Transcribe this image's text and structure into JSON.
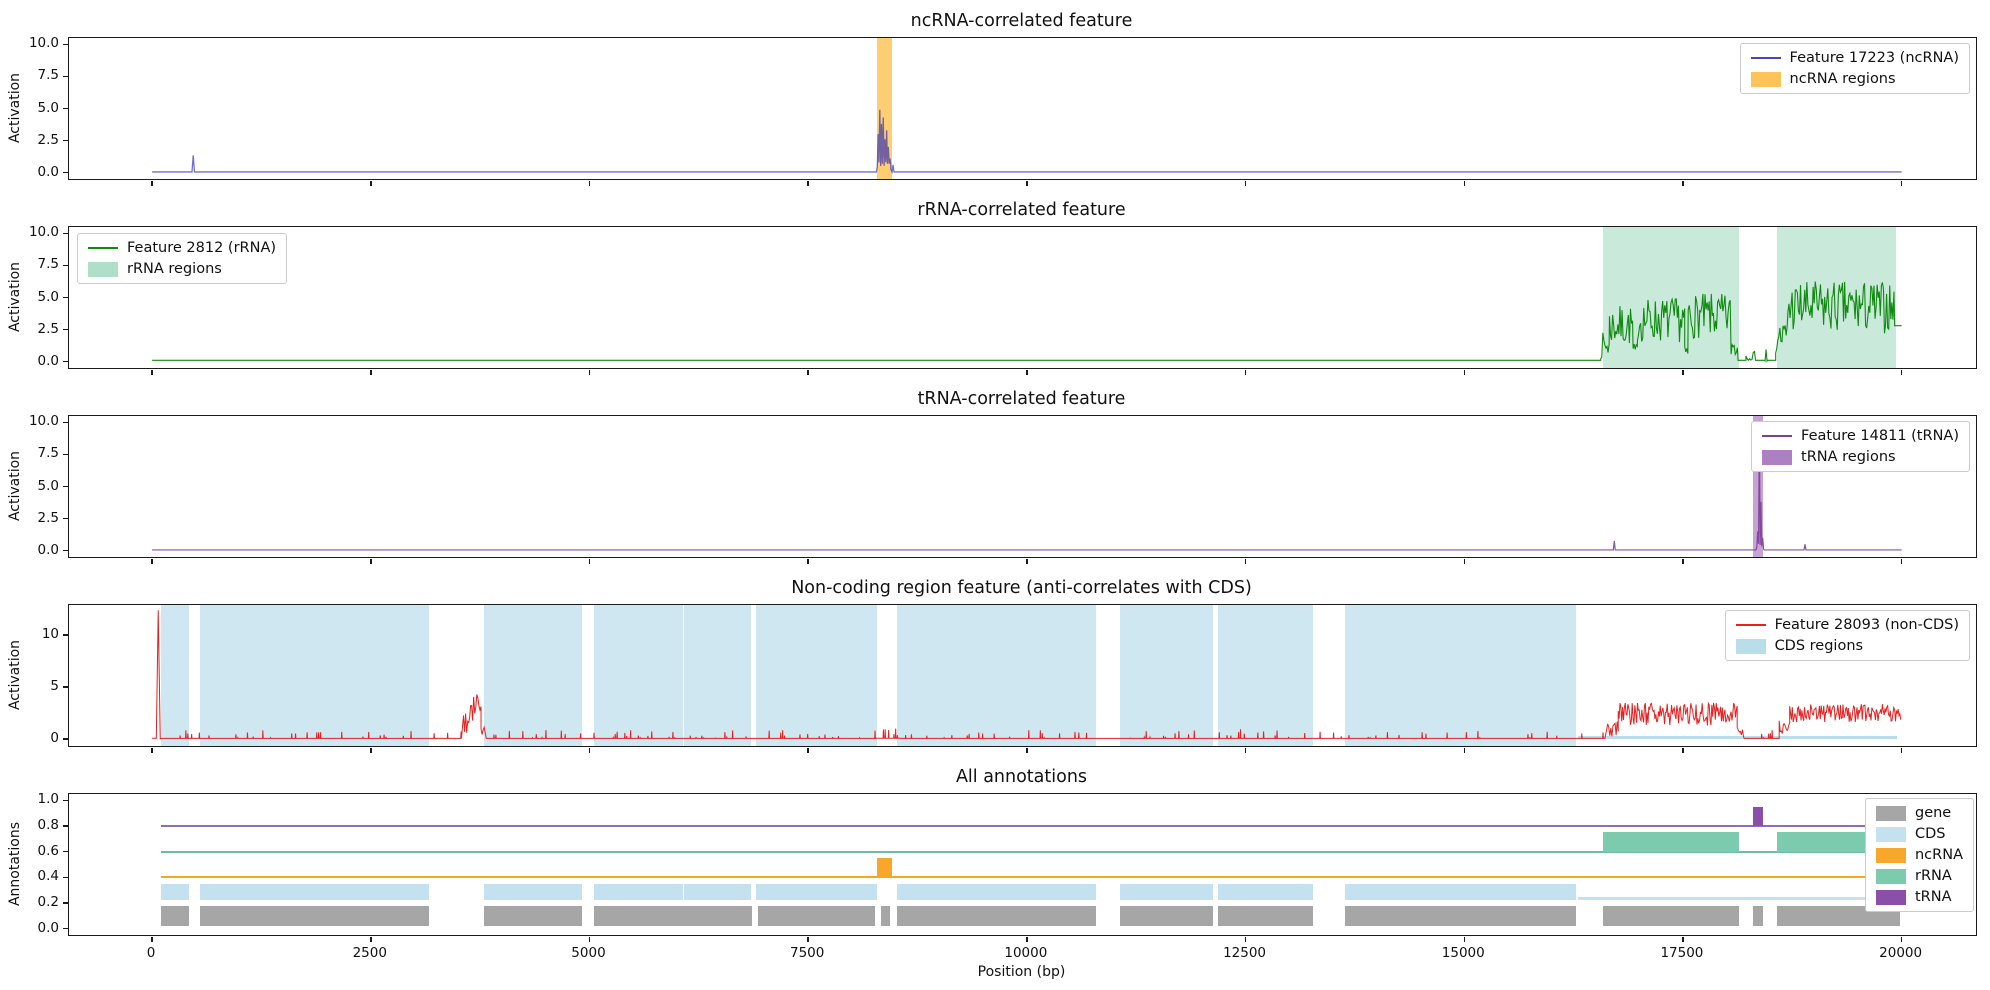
{
  "figure": {
    "xlabel": "Position (bp)",
    "xlim": [
      -950,
      20850
    ],
    "xticks": [
      0,
      2500,
      5000,
      7500,
      10000,
      12500,
      15000,
      17500,
      20000
    ],
    "xtick_labels": [
      "0",
      "2500",
      "5000",
      "7500",
      "10000",
      "12500",
      "15000",
      "17500",
      "20000"
    ],
    "background": "#ffffff",
    "axis_color": "#1a1a1a"
  },
  "chart_data": [
    {
      "type": "line",
      "title": "ncRNA-correlated feature",
      "ylabel": "Activation",
      "ylim": [
        -0.5,
        10.5
      ],
      "ytick_vals": [
        0,
        2.5,
        5,
        7.5,
        10
      ],
      "ytick_labels": [
        "0.0",
        "2.5",
        "5.0",
        "7.5",
        "10.0"
      ],
      "series": [
        {
          "name": "Feature 17223 (ncRNA)",
          "color": "rgba(45,45,180,0.68)",
          "width": 1.3,
          "seed": 3,
          "profile": [
            {
              "t": "flat",
              "x0": 0,
              "x1": 455,
              "y": 0.05
            },
            {
              "t": "spike",
              "x": 470,
              "h": 1.35,
              "w": 28
            },
            {
              "t": "flat",
              "x0": 485,
              "x1": 8280,
              "y": 0.05
            },
            {
              "t": "burst",
              "x0": 8290,
              "x1": 8445,
              "floor": 0.5,
              "peaks": [
                3.0,
                4.9,
                3.8,
                4.3,
                2.6,
                3.3,
                2.0,
                1.1
              ]
            },
            {
              "t": "spike",
              "x": 8470,
              "h": 0.6,
              "w": 22
            },
            {
              "t": "flat",
              "x0": 8490,
              "x1": 20000,
              "y": 0.05
            }
          ]
        }
      ],
      "regions": [
        {
          "name": "ncRNA regions",
          "color": "rgba(255,165,0,0.55)",
          "ranges": [
            [
              8290,
              8460
            ]
          ]
        }
      ],
      "legend": {
        "pos": "top-right",
        "entries": [
          {
            "swatch": "line",
            "color": "rgba(50,50,190,0.9)",
            "label": "Feature 17223 (ncRNA)"
          },
          {
            "swatch": "patch",
            "color": "rgba(255,165,0,0.65)",
            "label": "ncRNA regions"
          }
        ]
      }
    },
    {
      "type": "line",
      "title": "rRNA-correlated feature",
      "ylabel": "Activation",
      "ylim": [
        -0.5,
        10.5
      ],
      "ytick_vals": [
        0,
        2.5,
        5,
        7.5,
        10
      ],
      "ytick_labels": [
        "0.0",
        "2.5",
        "5.0",
        "7.5",
        "10.0"
      ],
      "series": [
        {
          "name": "Feature 2812 (rRNA)",
          "color": "#118a11",
          "width": 1.1,
          "seed": 7,
          "profile": [
            {
              "t": "flat",
              "x0": 0,
              "x1": 16560,
              "y": 0.1
            },
            {
              "t": "noise",
              "x0": 16560,
              "x1": 16660,
              "lo": 0.2,
              "hi": 2.3,
              "step": 12
            },
            {
              "t": "noise",
              "x0": 16660,
              "x1": 16930,
              "lo": 1.2,
              "hi": 4.4,
              "step": 12
            },
            {
              "t": "noise",
              "x0": 16930,
              "x1": 16980,
              "lo": 0.2,
              "hi": 1.4,
              "step": 12
            },
            {
              "t": "noise",
              "x0": 16980,
              "x1": 17520,
              "lo": 1.5,
              "hi": 5.0,
              "step": 12
            },
            {
              "t": "noise",
              "x0": 17520,
              "x1": 17560,
              "lo": 0.2,
              "hi": 1.2,
              "step": 12
            },
            {
              "t": "noise",
              "x0": 17560,
              "x1": 18050,
              "lo": 1.8,
              "hi": 5.3,
              "step": 12
            },
            {
              "t": "noise",
              "x0": 18050,
              "x1": 18130,
              "lo": 0.2,
              "hi": 2.2,
              "step": 12
            },
            {
              "t": "flat",
              "x0": 18130,
              "x1": 18220,
              "y": 0.1
            },
            {
              "t": "noise",
              "x0": 18220,
              "x1": 18330,
              "lo": 0.1,
              "hi": 0.8,
              "step": 14
            },
            {
              "t": "flat",
              "x0": 18330,
              "x1": 18430,
              "y": 0.1
            },
            {
              "t": "spike",
              "x": 18450,
              "h": 0.95,
              "w": 22
            },
            {
              "t": "flat",
              "x0": 18465,
              "x1": 18560,
              "y": 0.1
            },
            {
              "t": "noise",
              "x0": 18560,
              "x1": 18700,
              "lo": 0.5,
              "hi": 3.4,
              "step": 12
            },
            {
              "t": "noise",
              "x0": 18700,
              "x1": 19920,
              "lo": 2.2,
              "hi": 6.3,
              "step": 12
            },
            {
              "t": "flat",
              "x0": 19920,
              "x1": 20000,
              "y": 2.8
            }
          ]
        }
      ],
      "regions": [
        {
          "name": "rRNA regions",
          "color": "rgba(77,184,133,0.3)",
          "ranges": [
            [
              16590,
              18140
            ],
            [
              18570,
              19930
            ]
          ]
        }
      ],
      "legend": {
        "pos": "top-left",
        "entries": [
          {
            "swatch": "line",
            "color": "#118a11",
            "label": "Feature 2812 (rRNA)"
          },
          {
            "swatch": "patch",
            "color": "rgba(77,184,133,0.45)",
            "label": "rRNA regions"
          }
        ]
      }
    },
    {
      "type": "line",
      "title": "tRNA-correlated feature",
      "ylabel": "Activation",
      "ylim": [
        -0.5,
        10.5
      ],
      "ytick_vals": [
        0,
        2.5,
        5,
        7.5,
        10
      ],
      "ytick_labels": [
        "0.0",
        "2.5",
        "5.0",
        "7.5",
        "10.0"
      ],
      "series": [
        {
          "name": "Feature 14811 (tRNA)",
          "color": "rgba(126,62,152,0.9)",
          "width": 1.2,
          "seed": 13,
          "profile": [
            {
              "t": "flat",
              "x0": 0,
              "x1": 16690,
              "y": 0.05
            },
            {
              "t": "spike",
              "x": 16715,
              "h": 0.75,
              "w": 22
            },
            {
              "t": "flat",
              "x0": 16735,
              "x1": 18335,
              "y": 0.05
            },
            {
              "t": "burst",
              "x0": 18345,
              "x1": 18420,
              "floor": 0.3,
              "peaks": [
                1.5,
                9.7,
                3.8,
                1.0
              ]
            },
            {
              "t": "flat",
              "x0": 18430,
              "x1": 18870,
              "y": 0.05
            },
            {
              "t": "spike",
              "x": 18895,
              "h": 0.5,
              "w": 22
            },
            {
              "t": "flat",
              "x0": 18915,
              "x1": 20000,
              "y": 0.05
            }
          ]
        }
      ],
      "regions": [
        {
          "name": "tRNA regions",
          "color": "rgba(140,74,168,0.5)",
          "ranges": [
            [
              18300,
              18420
            ]
          ]
        }
      ],
      "legend": {
        "pos": "top-right",
        "entries": [
          {
            "swatch": "line",
            "color": "rgba(126,62,152,1)",
            "label": "Feature 14811 (tRNA)"
          },
          {
            "swatch": "patch",
            "color": "rgba(140,74,168,0.7)",
            "label": "tRNA regions"
          }
        ]
      }
    },
    {
      "type": "line",
      "title": "Non-coding region feature (anti-correlates with CDS)",
      "ylabel": "Activation",
      "ylim": [
        -0.65,
        12.9
      ],
      "ytick_vals": [
        0,
        5,
        10
      ],
      "ytick_labels": [
        "0",
        "5",
        "10"
      ],
      "series": [
        {
          "name": "Feature 28093 (non-CDS)",
          "color": "#e62020",
          "width": 1.0,
          "seed": 21,
          "profile": [
            {
              "t": "flat",
              "x0": 0,
              "x1": 45,
              "y": 0.1
            },
            {
              "t": "spike",
              "x": 70,
              "h": 12.4,
              "w": 45
            },
            {
              "t": "sparse",
              "x0": 100,
              "x1": 3540,
              "base": 0.08,
              "maxh": 0.85,
              "density": 0.22,
              "step": 22
            },
            {
              "t": "noise",
              "x0": 3560,
              "x1": 3640,
              "lo": 0.3,
              "hi": 2.6,
              "step": 12
            },
            {
              "t": "noise",
              "x0": 3640,
              "x1": 3760,
              "lo": 1.4,
              "hi": 4.6,
              "step": 12
            },
            {
              "t": "noise",
              "x0": 3760,
              "x1": 3800,
              "lo": 0.3,
              "hi": 1.4,
              "step": 12
            },
            {
              "t": "sparse",
              "x0": 3820,
              "x1": 8280,
              "base": 0.08,
              "maxh": 0.8,
              "density": 0.22,
              "step": 22
            },
            {
              "t": "sparse",
              "x0": 8280,
              "x1": 8550,
              "base": 0.1,
              "maxh": 1.1,
              "density": 0.5,
              "step": 20
            },
            {
              "t": "sparse",
              "x0": 8570,
              "x1": 12200,
              "base": 0.08,
              "maxh": 0.8,
              "density": 0.2,
              "step": 22
            },
            {
              "t": "sparse",
              "x0": 12200,
              "x1": 13000,
              "base": 0.08,
              "maxh": 0.95,
              "density": 0.3,
              "step": 22
            },
            {
              "t": "sparse",
              "x0": 13000,
              "x1": 16620,
              "base": 0.08,
              "maxh": 0.75,
              "density": 0.18,
              "step": 22
            },
            {
              "t": "noise",
              "x0": 16640,
              "x1": 16760,
              "lo": 0.1,
              "hi": 1.7,
              "step": 12
            },
            {
              "t": "noise",
              "x0": 16760,
              "x1": 18120,
              "lo": 1.3,
              "hi": 3.5,
              "step": 10
            },
            {
              "t": "noise",
              "x0": 18120,
              "x1": 18200,
              "lo": 0.1,
              "hi": 1.2,
              "step": 12
            },
            {
              "t": "sparse",
              "x0": 18200,
              "x1": 18600,
              "base": 0.08,
              "maxh": 0.9,
              "density": 0.3,
              "step": 20
            },
            {
              "t": "noise",
              "x0": 18600,
              "x1": 18720,
              "lo": 0.3,
              "hi": 2.3,
              "step": 12
            },
            {
              "t": "noise",
              "x0": 18720,
              "x1": 19990,
              "lo": 1.6,
              "hi": 3.4,
              "step": 10
            }
          ]
        }
      ],
      "regions": [
        {
          "name": "CDS regions",
          "color": "rgba(168,212,228,0.55)",
          "ranges": [
            [
              100,
              420
            ],
            [
              550,
              3160
            ],
            [
              3790,
              4915
            ],
            [
              5055,
              6070
            ],
            [
              6085,
              6845
            ],
            [
              6900,
              8290
            ],
            [
              8520,
              10790
            ],
            [
              11070,
              12130
            ],
            [
              12180,
              13270
            ],
            [
              13640,
              16280
            ]
          ]
        },
        {
          "name": "CDS low strip",
          "color": "rgba(168,212,228,0.8)",
          "ranges": [
            [
              16300,
              19950
            ]
          ],
          "ymax_units": 0.35
        }
      ],
      "legend": {
        "pos": "top-right",
        "entries": [
          {
            "swatch": "line",
            "color": "#e62020",
            "label": "Feature 28093 (non-CDS)"
          },
          {
            "swatch": "patch",
            "color": "rgba(168,212,228,0.8)",
            "label": "CDS regions"
          }
        ]
      }
    },
    {
      "type": "annotation-tracks",
      "title": "All annotations",
      "ylabel": "Annotations",
      "ylim": [
        -0.05,
        1.05
      ],
      "ytick_vals": [
        0,
        0.2,
        0.4,
        0.6,
        0.8,
        1
      ],
      "ytick_labels": [
        "0.0",
        "0.2",
        "0.4",
        "0.6",
        "0.8",
        "1.0"
      ],
      "tracks": [
        {
          "name": "gene",
          "block_color": "#a6a6a6",
          "base": 0.02,
          "top": 0.18,
          "blocks": [
            [
              100,
              420
            ],
            [
              550,
              3160
            ],
            [
              3790,
              4915
            ],
            [
              5055,
              6860
            ],
            [
              6930,
              8260
            ],
            [
              8330,
              8430
            ],
            [
              8520,
              10790
            ],
            [
              11070,
              12130
            ],
            [
              12180,
              13270
            ],
            [
              13640,
              16280
            ],
            [
              16590,
              18140
            ],
            [
              18300,
              18420
            ],
            [
              18570,
              19980
            ]
          ]
        },
        {
          "name": "CDS",
          "block_color": "#c3e1ee",
          "base": 0.22,
          "top": 0.35,
          "blocks": [
            [
              100,
              420
            ],
            [
              550,
              3160
            ],
            [
              3790,
              4915
            ],
            [
              5055,
              6070
            ],
            [
              6085,
              6845
            ],
            [
              6900,
              8290
            ],
            [
              8520,
              10790
            ],
            [
              11070,
              12130
            ],
            [
              12180,
              13270
            ],
            [
              13640,
              16280
            ]
          ],
          "strip": {
            "range": [
              16300,
              19950
            ],
            "top": 0.245
          }
        },
        {
          "name": "ncRNA",
          "line_color": "#f5a623",
          "line_y": 0.4,
          "line_range": [
            100,
            19980
          ],
          "block_color": "#f7a82c",
          "base": 0.4,
          "top": 0.55,
          "blocks": [
            [
              8290,
              8460
            ]
          ]
        },
        {
          "name": "rRNA",
          "line_color": "#6abfa3",
          "line_y": 0.6,
          "line_range": [
            100,
            19980
          ],
          "block_color": "#7ccbaf",
          "base": 0.6,
          "top": 0.75,
          "blocks": [
            [
              16590,
              18140
            ],
            [
              18570,
              19930
            ]
          ]
        },
        {
          "name": "tRNA",
          "line_color": "#8f6db5",
          "line_y": 0.8,
          "line_range": [
            100,
            19980
          ],
          "block_color": "#8a4fa8",
          "base": 0.8,
          "top": 0.95,
          "blocks": [
            [
              18300,
              18420
            ]
          ]
        }
      ],
      "legend": {
        "pos": "right",
        "entries": [
          {
            "swatch": "patch",
            "color": "#a6a6a6",
            "label": "gene"
          },
          {
            "swatch": "patch",
            "color": "#c3e1ee",
            "label": "CDS"
          },
          {
            "swatch": "patch",
            "color": "#f7a82c",
            "label": "ncRNA"
          },
          {
            "swatch": "patch",
            "color": "#7ccbaf",
            "label": "rRNA"
          },
          {
            "swatch": "patch",
            "color": "#8a4fa8",
            "label": "tRNA"
          }
        ]
      }
    }
  ]
}
